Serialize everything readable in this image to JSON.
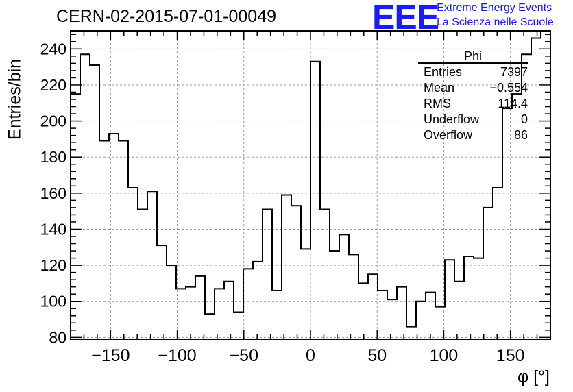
{
  "header": {
    "title": "CERN-02-2015-07-01-00049",
    "logo": "EEE",
    "logo_line1": "Extreme Energy Events",
    "logo_line2": "La Scienza nelle Scuole"
  },
  "stats_box": {
    "title": "Phi",
    "rows": [
      {
        "label": "Entries",
        "value": "7397"
      },
      {
        "label": "Mean",
        "value": "−0.554"
      },
      {
        "label": "RMS",
        "value": "114.4"
      },
      {
        "label": "Underflow",
        "value": "0"
      },
      {
        "label": "Overflow",
        "value": "86"
      }
    ]
  },
  "colors": {
    "line": "#000000",
    "grid": "#9a9a9a",
    "logo": "#1a1aff"
  },
  "chart_data": {
    "type": "histogram",
    "title": "CERN-02-2015-07-01-00049",
    "xlabel": "φ [°]",
    "ylabel": "Entries/bin",
    "xlim": [
      -180,
      180
    ],
    "ylim": [
      79,
      250
    ],
    "bin_width": 7.2,
    "grid": true,
    "x_ticks": [
      -150,
      -100,
      -50,
      0,
      50,
      100,
      150
    ],
    "x_tick_labels": [
      "−150",
      "−100",
      "−50",
      "0",
      "50",
      "100",
      "150"
    ],
    "y_ticks": [
      80,
      100,
      120,
      140,
      160,
      180,
      200,
      220,
      240
    ],
    "y_tick_labels": [
      "80",
      "100",
      "120",
      "140",
      "160",
      "180",
      "200",
      "220",
      "240"
    ],
    "values": [
      215,
      237,
      231,
      189,
      193,
      189,
      163,
      151,
      161,
      131,
      120,
      107,
      108,
      114,
      93,
      107,
      111,
      94,
      118,
      122,
      151,
      106,
      159,
      153,
      129,
      233,
      151,
      128,
      137,
      126,
      110,
      115,
      106,
      101,
      108,
      86,
      100,
      105,
      97,
      123,
      111,
      125,
      124,
      152,
      163,
      207,
      215,
      237,
      246,
      250
    ]
  }
}
